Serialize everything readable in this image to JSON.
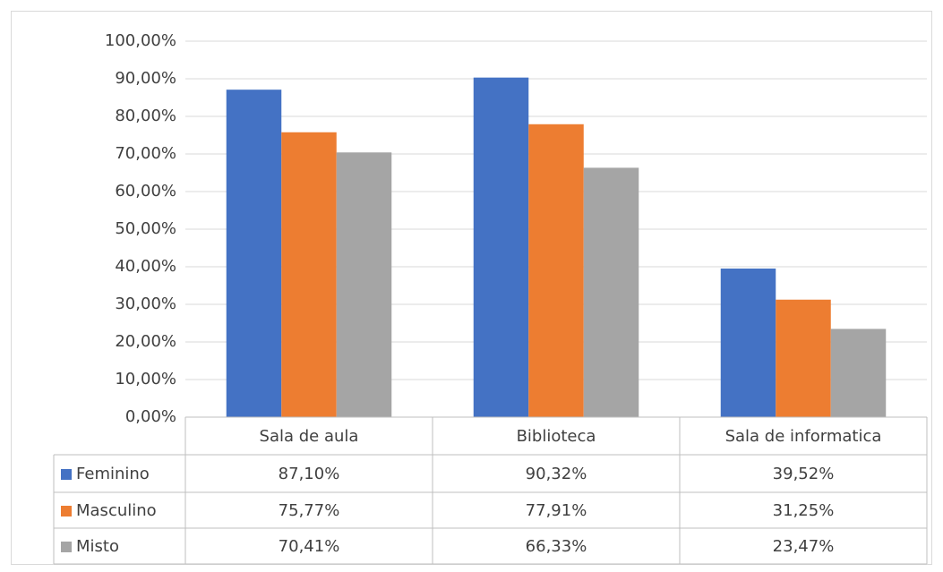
{
  "chart_data": {
    "type": "bar",
    "categories": [
      "Sala de aula",
      "Biblioteca",
      "Sala de informatica"
    ],
    "series": [
      {
        "name": "Feminino",
        "color": "#4472c4",
        "values": [
          87.1,
          90.32,
          39.52
        ],
        "value_labels": [
          "87,10%",
          "90,32%",
          "39,52%"
        ]
      },
      {
        "name": "Masculino",
        "color": "#ed7d31",
        "values": [
          75.77,
          77.91,
          31.25
        ],
        "value_labels": [
          "75,77%",
          "77,91%",
          "31,25%"
        ]
      },
      {
        "name": "Misto",
        "color": "#a5a5a5",
        "values": [
          70.41,
          66.33,
          23.47
        ],
        "value_labels": [
          "70,41%",
          "66,33%",
          "23,47%"
        ]
      }
    ],
    "ylim": [
      0,
      100
    ],
    "yticks": [
      {
        "value": 0,
        "label": "0,00%"
      },
      {
        "value": 10,
        "label": "10,00%"
      },
      {
        "value": 20,
        "label": "20,00%"
      },
      {
        "value": 30,
        "label": "30,00%"
      },
      {
        "value": 40,
        "label": "40,00%"
      },
      {
        "value": 50,
        "label": "50,00%"
      },
      {
        "value": 60,
        "label": "60,00%"
      },
      {
        "value": 70,
        "label": "70,00%"
      },
      {
        "value": 80,
        "label": "80,00%"
      },
      {
        "value": 90,
        "label": "90,00%"
      },
      {
        "value": 100,
        "label": "100,00%"
      }
    ],
    "grid": true,
    "legend": "table"
  }
}
